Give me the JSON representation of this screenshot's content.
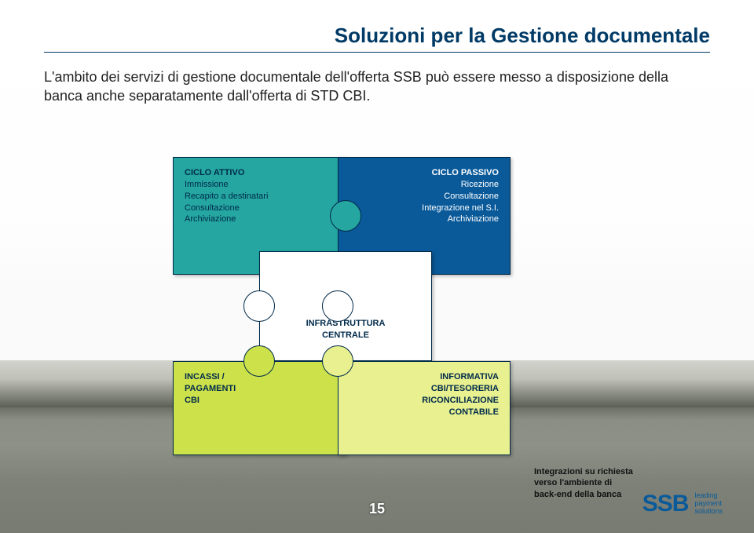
{
  "title": "Soluzioni per la Gestione documentale",
  "intro": "L'ambito dei servizi di gestione documentale dell'offerta SSB può essere messo a disposizione della banca anche separatamente dall'offerta di STD CBI.",
  "page_number": "15",
  "colors": {
    "title": "#003a66",
    "rule": "#003a66",
    "piece_border": "#002a4a",
    "tl_bg": "#25a6a0",
    "tr_bg": "#0a5a9a",
    "mid_bg": "#ffffff",
    "bl_bg": "#cde24a",
    "br_bg": "#e8f090",
    "logo": "#0a5a9a"
  },
  "pieces": {
    "tl": {
      "title": "CICLO ATTIVO",
      "lines": [
        "Immissione",
        "Recapito a destinatari",
        "Consultazione",
        "Archiviazione"
      ]
    },
    "tr": {
      "title": "CICLO PASSIVO",
      "lines": [
        "Ricezione",
        "Consultazione",
        "Integrazione nel S.I.",
        "Archiviazione"
      ]
    },
    "mid": {
      "line1": "INFRASTRUTTURA",
      "line2": "CENTRALE"
    },
    "bl": {
      "title": "INCASSI /",
      "lines": [
        "PAGAMENTI",
        "CBI"
      ]
    },
    "br": {
      "title": "INFORMATIVA",
      "lines": [
        "CBI/TESORERIA",
        "RICONCILIAZIONE",
        "CONTABILE"
      ]
    }
  },
  "annotation": {
    "line1": "Integrazioni su richiesta",
    "line2": "verso l'ambiente di",
    "line3": "back-end della banca"
  },
  "logo": {
    "text": "SSB",
    "tag1": "leading",
    "tag2": "payment",
    "tag3": "solutions"
  }
}
